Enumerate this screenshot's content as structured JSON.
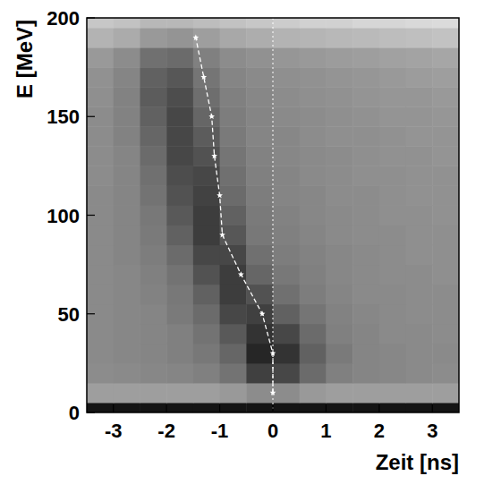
{
  "chart_data": {
    "type": "heatmap",
    "x_label": "Zeit [ns]",
    "y_label": "E [MeV]",
    "xlim": [
      -3.5,
      3.5
    ],
    "ylim": [
      0,
      200
    ],
    "xticks": [
      -3,
      -2,
      -1,
      0,
      1,
      2,
      3
    ],
    "yticks": [
      0,
      50,
      100,
      150,
      200
    ],
    "heatmap": {
      "x_edges": [
        -3.5,
        -3,
        -2.5,
        -2,
        -1.5,
        -1,
        -0.5,
        0,
        0.5,
        1,
        1.5,
        2,
        2.5,
        3,
        3.5
      ],
      "y_edges": [
        0,
        5,
        15,
        25,
        35,
        45,
        55,
        65,
        75,
        85,
        95,
        105,
        115,
        125,
        135,
        145,
        155,
        165,
        175,
        185,
        195,
        200
      ],
      "color_range": [
        0,
        100
      ],
      "cells": [
        [
          92,
          92,
          92,
          92,
          92,
          92,
          92,
          92,
          92,
          92,
          92,
          92,
          92,
          92
        ],
        [
          38,
          38,
          38,
          38,
          38,
          40,
          45,
          45,
          40,
          38,
          38,
          38,
          38,
          38
        ],
        [
          45,
          46,
          47,
          48,
          50,
          55,
          75,
          72,
          58,
          50,
          48,
          47,
          46,
          45
        ],
        [
          46,
          47,
          48,
          50,
          53,
          60,
          85,
          80,
          62,
          52,
          48,
          47,
          46,
          46
        ],
        [
          46,
          47,
          48,
          50,
          55,
          65,
          80,
          72,
          58,
          50,
          48,
          46,
          46,
          45
        ],
        [
          46,
          47,
          48,
          52,
          58,
          72,
          75,
          62,
          54,
          49,
          47,
          46,
          45,
          45
        ],
        [
          46,
          47,
          49,
          53,
          62,
          76,
          68,
          56,
          51,
          48,
          46,
          46,
          45,
          45
        ],
        [
          46,
          47,
          50,
          55,
          68,
          76,
          60,
          53,
          50,
          47,
          46,
          45,
          45,
          44
        ],
        [
          46,
          48,
          51,
          58,
          72,
          72,
          56,
          51,
          49,
          47,
          46,
          45,
          44,
          44
        ],
        [
          46,
          48,
          52,
          62,
          76,
          66,
          53,
          50,
          48,
          46,
          45,
          45,
          44,
          44
        ],
        [
          46,
          48,
          53,
          65,
          76,
          62,
          52,
          49,
          47,
          46,
          45,
          44,
          44,
          43
        ],
        [
          46,
          48,
          55,
          68,
          74,
          58,
          51,
          48,
          47,
          45,
          45,
          44,
          43,
          43
        ],
        [
          45,
          48,
          56,
          70,
          72,
          56,
          50,
          48,
          46,
          45,
          44,
          44,
          43,
          43
        ],
        [
          45,
          48,
          58,
          72,
          68,
          54,
          49,
          47,
          46,
          45,
          44,
          43,
          43,
          42
        ],
        [
          45,
          49,
          60,
          72,
          64,
          52,
          48,
          47,
          45,
          44,
          44,
          43,
          42,
          42
        ],
        [
          45,
          49,
          62,
          72,
          60,
          51,
          48,
          46,
          45,
          44,
          43,
          42,
          42,
          41
        ],
        [
          44,
          49,
          64,
          70,
          57,
          50,
          47,
          45,
          44,
          43,
          42,
          41,
          41,
          40
        ],
        [
          43,
          48,
          62,
          66,
          54,
          48,
          46,
          44,
          43,
          42,
          41,
          40,
          39,
          38
        ],
        [
          40,
          45,
          56,
          58,
          50,
          45,
          43,
          41,
          40,
          39,
          38,
          37,
          36,
          35
        ],
        [
          30,
          33,
          40,
          42,
          38,
          34,
          32,
          30,
          29,
          28,
          27,
          26,
          25,
          24
        ],
        [
          22,
          24,
          28,
          28,
          26,
          24,
          22,
          20,
          18,
          18,
          16,
          16,
          15,
          14
        ]
      ]
    },
    "vline": 0,
    "series": [
      {
        "type": "line",
        "color": "#ffffff",
        "line_style": "dashed",
        "marker": "star",
        "x": [
          0,
          0,
          -0.2,
          -0.6,
          -0.95,
          -1.0,
          -1.1,
          -1.15,
          -1.3,
          -1.45
        ],
        "values": [
          10,
          30,
          50,
          70,
          90,
          110,
          130,
          150,
          170,
          190
        ]
      }
    ]
  }
}
